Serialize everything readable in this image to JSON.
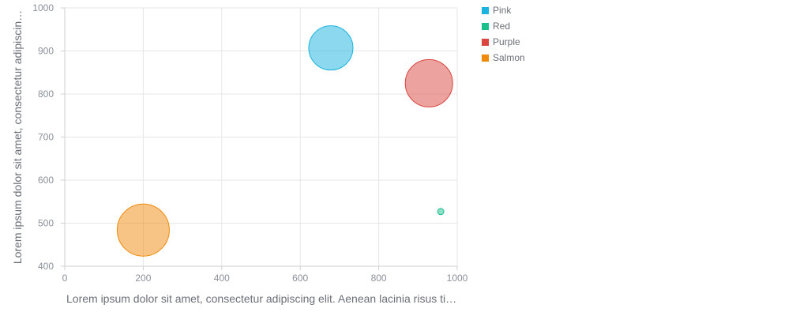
{
  "chart_data": {
    "type": "scatter",
    "subtype": "bubble",
    "title": "",
    "xlabel": "Lorem ipsum dolor sit amet, consectetur adipiscing elit. Aenean lacinia risus ti…",
    "ylabel": "Lorem ipsum dolor sit amet, consectetur adipiscin…",
    "xlim": [
      0,
      1000
    ],
    "ylim": [
      400,
      1000
    ],
    "x_ticks": [
      "0",
      "200",
      "400",
      "600",
      "800",
      "1000"
    ],
    "y_ticks": [
      "400",
      "500",
      "600",
      "700",
      "800",
      "900",
      "1000"
    ],
    "grid": true,
    "legend_position": "right-top",
    "series": [
      {
        "name": "Pink",
        "color": "#1ab3e0",
        "points": [
          {
            "x": 678,
            "y": 907,
            "size": 28
          }
        ]
      },
      {
        "name": "Red",
        "color": "#1bbf8c",
        "points": [
          {
            "x": 958,
            "y": 527,
            "size": 4
          }
        ]
      },
      {
        "name": "Purple",
        "color": "#d9453f",
        "points": [
          {
            "x": 928,
            "y": 825,
            "size": 30
          }
        ]
      },
      {
        "name": "Salmon",
        "color": "#f08a0c",
        "points": [
          {
            "x": 200,
            "y": 484,
            "size": 33
          }
        ]
      }
    ]
  }
}
